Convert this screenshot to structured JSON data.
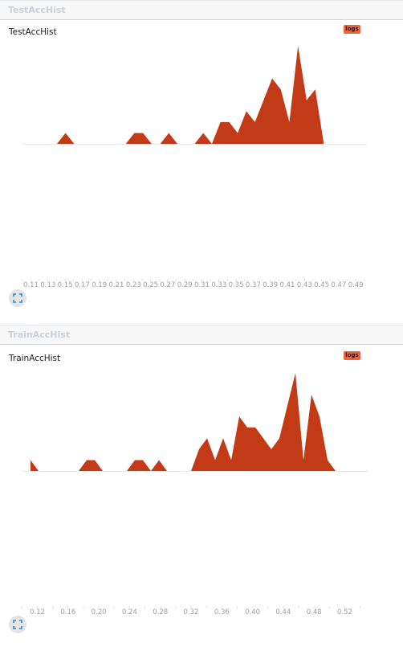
{
  "panels": [
    {
      "header_title": "TestAccHist",
      "chart_title": "TestAccHist",
      "badge": "logs",
      "chart_data": {
        "type": "area",
        "title": "TestAccHist",
        "x": [
          0.1,
          0.12,
          0.14,
          0.15,
          0.16,
          0.18,
          0.2,
          0.22,
          0.23,
          0.24,
          0.25,
          0.26,
          0.27,
          0.28,
          0.29,
          0.3,
          0.31,
          0.32,
          0.33,
          0.34,
          0.35,
          0.36,
          0.37,
          0.38,
          0.39,
          0.4,
          0.41,
          0.42,
          0.43,
          0.44,
          0.45
        ],
        "y": [
          0,
          0,
          0,
          1,
          0,
          0,
          0,
          0,
          1,
          1,
          0,
          0,
          1,
          0,
          0,
          0,
          1,
          0,
          2,
          2,
          1,
          3,
          2,
          4,
          6,
          5,
          2,
          9,
          4,
          5,
          0
        ],
        "xticks": [
          "0.11",
          "0.13",
          "0.15",
          "0.17",
          "0.19",
          "0.21",
          "0.23",
          "0.25",
          "0.27",
          "0.29",
          "0.31",
          "0.33",
          "0.35",
          "0.37",
          "0.39",
          "0.41",
          "0.43",
          "0.45",
          "0.47",
          "0.49"
        ],
        "color": "#c23b16"
      }
    },
    {
      "header_title": "TrainAccHist",
      "chart_title": "TrainAccHist",
      "badge": "logs",
      "chart_data": {
        "type": "area",
        "title": "TrainAccHist",
        "x": [
          0.12,
          0.13,
          0.14,
          0.16,
          0.18,
          0.19,
          0.2,
          0.21,
          0.22,
          0.24,
          0.25,
          0.26,
          0.27,
          0.28,
          0.29,
          0.3,
          0.32,
          0.33,
          0.34,
          0.35,
          0.36,
          0.37,
          0.38,
          0.39,
          0.4,
          0.41,
          0.42,
          0.43,
          0.45,
          0.46,
          0.47,
          0.48,
          0.49,
          0.5,
          0.52,
          0.53
        ],
        "y": [
          1,
          0,
          0,
          0,
          0,
          1,
          1,
          0,
          0,
          0,
          1,
          1,
          0,
          1,
          0,
          0,
          0,
          2,
          3,
          1,
          3,
          1,
          5,
          4,
          4,
          3,
          2,
          3,
          9,
          1,
          7,
          5,
          1,
          0,
          0,
          0
        ],
        "xticks": [
          "0.12",
          "0.16",
          "0.20",
          "0.24",
          "0.28",
          "0.32",
          "0.36",
          "0.40",
          "0.44",
          "0.48",
          "0.52"
        ],
        "color": "#c23b16"
      }
    }
  ]
}
